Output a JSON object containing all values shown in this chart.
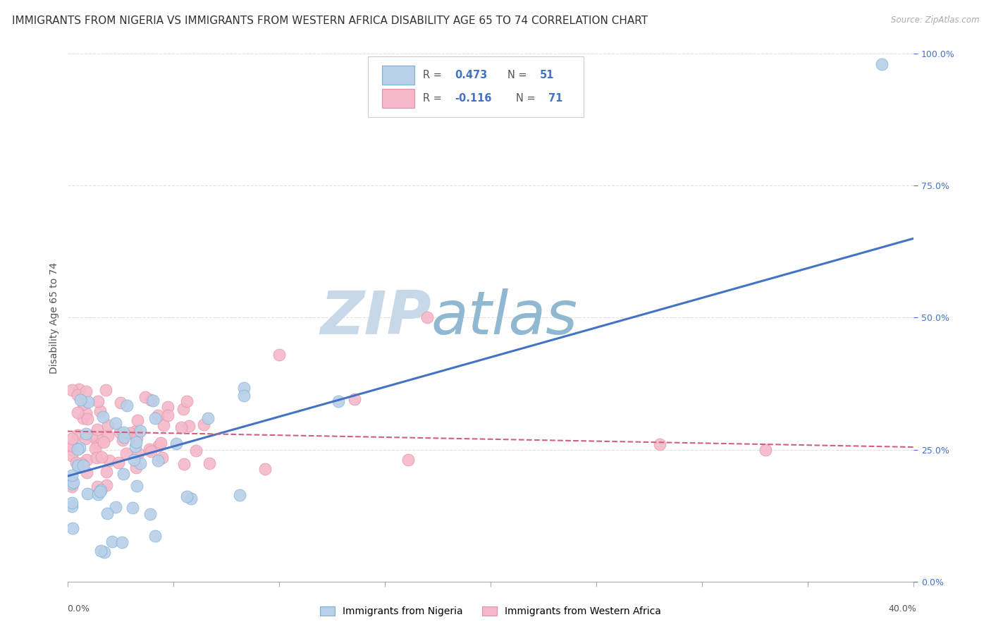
{
  "title": "IMMIGRANTS FROM NIGERIA VS IMMIGRANTS FROM WESTERN AFRICA DISABILITY AGE 65 TO 74 CORRELATION CHART",
  "source": "Source: ZipAtlas.com",
  "ylabel": "Disability Age 65 to 74",
  "y_tick_labels": [
    "0.0%",
    "25.0%",
    "50.0%",
    "75.0%",
    "100.0%"
  ],
  "y_tick_values": [
    0.0,
    0.25,
    0.5,
    0.75,
    1.0
  ],
  "x_lim": [
    0.0,
    0.4
  ],
  "y_lim": [
    0.0,
    1.0
  ],
  "series1": {
    "label": "Immigrants from Nigeria",
    "R": 0.473,
    "N": 51,
    "color": "#b8d0e8",
    "line_color": "#4472c4",
    "marker_edge_color": "#7bafd4"
  },
  "series2": {
    "label": "Immigrants from Western Africa",
    "R": -0.116,
    "N": 71,
    "color": "#f4b8c8",
    "line_color": "#d06080",
    "marker_edge_color": "#e090a8"
  },
  "watermark_zip": "ZIP",
  "watermark_atlas": "atlas",
  "watermark_color_zip": "#c8d8e8",
  "watermark_color_atlas": "#90b8d0",
  "background_color": "#ffffff",
  "grid_color": "#e0e0e0",
  "legend_R_color": "#4472c4",
  "title_fontsize": 11,
  "axis_label_fontsize": 10,
  "tick_fontsize": 9,
  "legend_fontsize": 10,
  "blue_line_y0": 0.2,
  "blue_line_y1": 0.65,
  "pink_line_y0": 0.285,
  "pink_line_y1": 0.255
}
